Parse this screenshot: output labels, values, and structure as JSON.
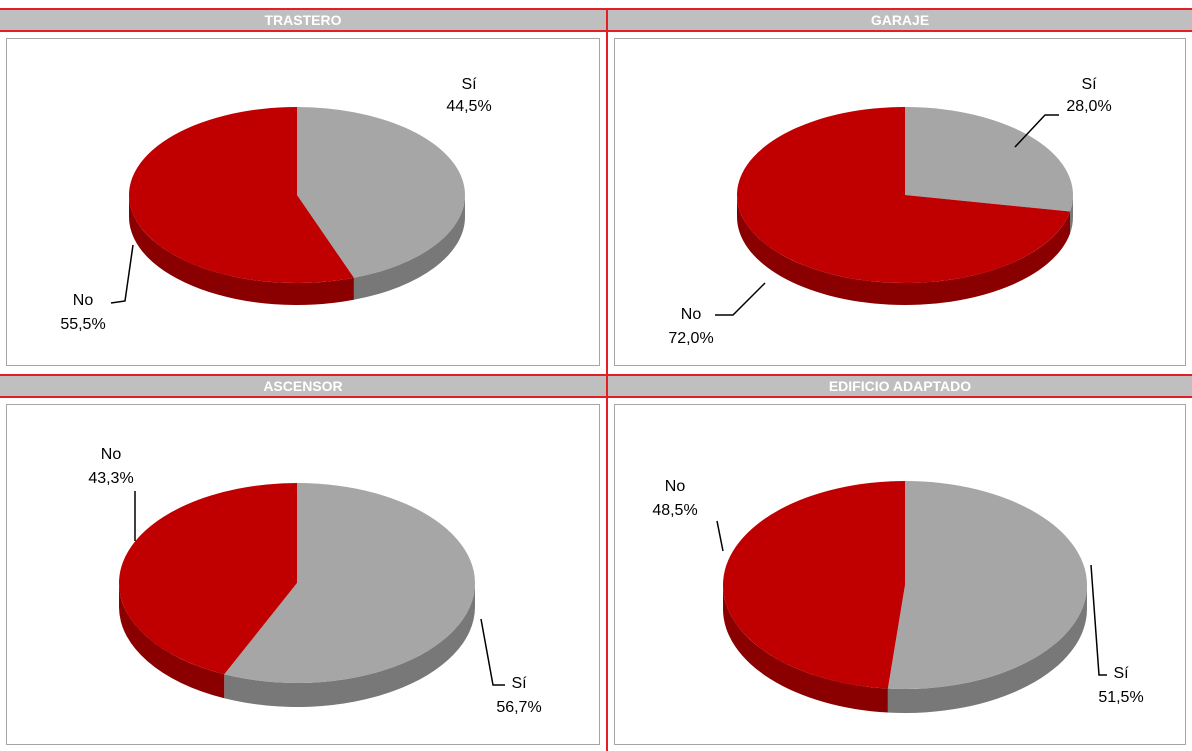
{
  "chart_data": [
    {
      "type": "pie",
      "title": "TRASTERO",
      "slices": [
        {
          "label": "Sí",
          "value": 44.5,
          "value_label": "44,5%",
          "color": "#a6a6a6"
        },
        {
          "label": "No",
          "value": 55.5,
          "value_label": "55,5%",
          "color": "#c00000"
        }
      ]
    },
    {
      "type": "pie",
      "title": "GARAJE",
      "slices": [
        {
          "label": "Sí",
          "value": 28.0,
          "value_label": "28,0%",
          "color": "#a6a6a6"
        },
        {
          "label": "No",
          "value": 72.0,
          "value_label": "72,0%",
          "color": "#c00000"
        }
      ]
    },
    {
      "type": "pie",
      "title": "ASCENSOR",
      "slices": [
        {
          "label": "Sí",
          "value": 56.7,
          "value_label": "56,7%",
          "color": "#a6a6a6"
        },
        {
          "label": "No",
          "value": 43.3,
          "value_label": "43,3%",
          "color": "#c00000"
        }
      ]
    },
    {
      "type": "pie",
      "title": "EDIFICIO ADAPTADO",
      "slices": [
        {
          "label": "Sí",
          "value": 51.5,
          "value_label": "51,5%",
          "color": "#a6a6a6"
        },
        {
          "label": "No",
          "value": 48.5,
          "value_label": "48,5%",
          "color": "#c00000"
        }
      ]
    }
  ]
}
